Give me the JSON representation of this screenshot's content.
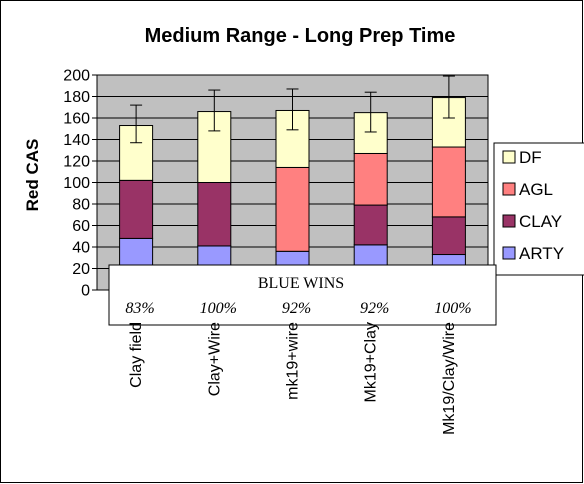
{
  "chart_data": {
    "type": "bar",
    "stacked": true,
    "title": "Medium Range - Long Prep Time",
    "xlabel": "",
    "ylabel": "Red CAS",
    "ylim": [
      0,
      200
    ],
    "yticks": [
      0,
      20,
      40,
      60,
      80,
      100,
      120,
      140,
      160,
      180,
      200
    ],
    "grid": true,
    "legend_position": "right",
    "categories": [
      "Clay field",
      "Clay+Wire",
      "mk19+wire",
      "Mk19+Clay",
      "Mk19/Clay/Wire"
    ],
    "series": [
      {
        "name": "ARTY",
        "color": "#9999ff",
        "values": [
          48,
          41,
          36,
          42,
          33
        ]
      },
      {
        "name": "CLAY",
        "color": "#993366",
        "values": [
          54,
          59,
          0,
          37,
          35
        ]
      },
      {
        "name": "AGL",
        "color": "#ff8080",
        "values": [
          0,
          0,
          78,
          48,
          65
        ]
      },
      {
        "name": "DF",
        "color": "#ffffcc",
        "values": [
          51,
          66,
          53,
          38,
          46
        ]
      }
    ],
    "error_bars": [
      {
        "total": 153,
        "upper": 172,
        "lower": 137
      },
      {
        "total": 166,
        "upper": 186,
        "lower": 148
      },
      {
        "total": 167,
        "upper": 187,
        "lower": 149
      },
      {
        "total": 165,
        "upper": 184,
        "lower": 147
      },
      {
        "total": 179,
        "upper": 199,
        "lower": 160
      }
    ],
    "annotation": {
      "heading": "BLUE WINS",
      "values": [
        "83%",
        "100%",
        "92%",
        "92%",
        "100%"
      ]
    },
    "plot_background": "#c0c0c0"
  }
}
